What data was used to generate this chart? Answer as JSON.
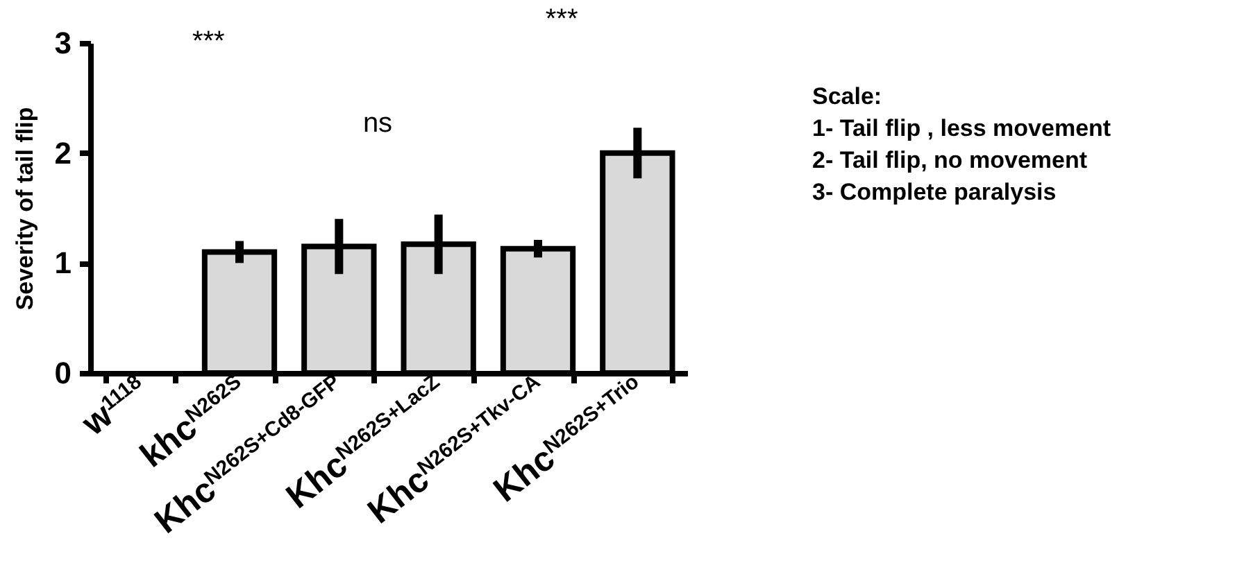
{
  "chart_data": {
    "type": "bar",
    "ylabel": "Severity of tail flip",
    "categories": [
      "w$^{1118}$",
      "khc$^{N262S}$",
      "Khc$^{N262S+Cd8-GFP}$",
      "Khc$^{N262S+LacZ}$",
      "Khc$^{N262S+Tkv-CA}$",
      "Khc$^{N262S+Trio}$"
    ],
    "values": [
      0,
      1.1,
      1.15,
      1.17,
      1.13,
      2.0
    ],
    "errors": [
      null,
      0.1,
      0.25,
      0.27,
      0.08,
      0.23
    ],
    "color": "#d9d9d9",
    "ylim": [
      0,
      3
    ],
    "yticks": [
      0,
      1,
      2,
      3
    ],
    "grid": false,
    "annotations": [
      "***",
      "ns",
      "***",
      "Scale:",
      "1- Tail flip , less movement",
      "2- Tail flip,  no movement",
      "3- Complete paralysis"
    ]
  }
}
